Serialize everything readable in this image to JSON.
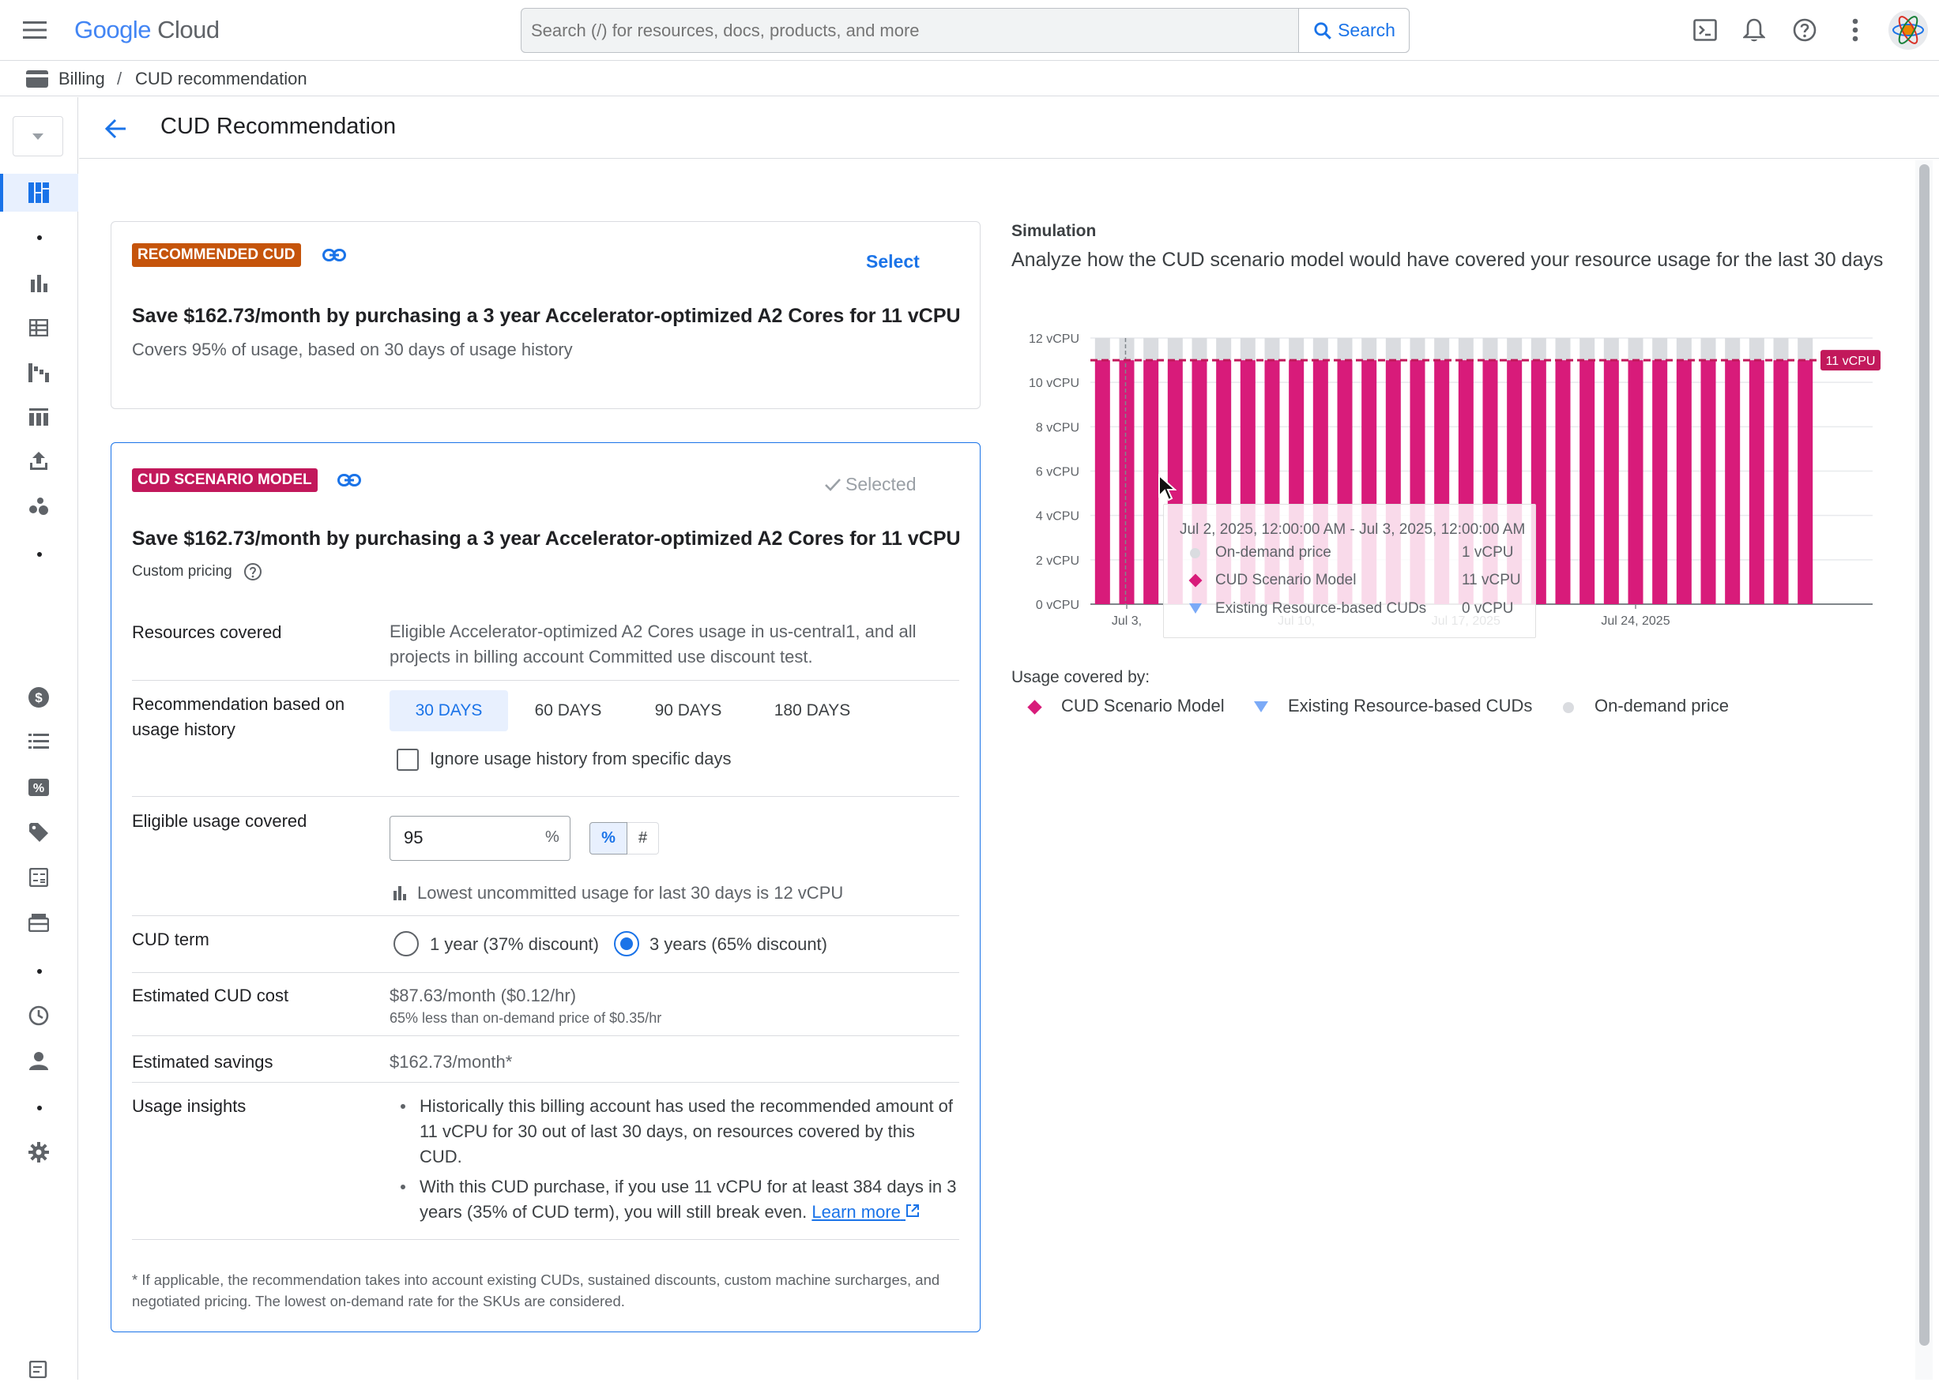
{
  "topbar": {
    "logo_google": "Google",
    "logo_cloud": "Cloud",
    "search_placeholder": "Search (/) for resources, docs, products, and more",
    "search_button": "Search"
  },
  "breadcrumb": {
    "items": [
      "Billing",
      "CUD recommendation"
    ],
    "separator": "/"
  },
  "page": {
    "title": "CUD Recommendation"
  },
  "recommended_card": {
    "badge": "RECOMMENDED CUD",
    "select_label": "Select",
    "headline": "Save $162.73/month by purchasing a 3 year Accelerator-optimized A2 Cores for 11 vCPU",
    "subtext": "Covers 95% of usage, based on 30 days of usage history"
  },
  "scenario_card": {
    "badge": "CUD SCENARIO MODEL",
    "selected_label": "Selected",
    "headline": "Save $162.73/month by purchasing a 3 year Accelerator-optimized A2 Cores for 11 vCPU",
    "custom_pricing": "Custom pricing",
    "resources_label": "Resources covered",
    "resources_value": "Eligible Accelerator-optimized A2 Cores usage in us-central1, and all projects in billing account Committed use discount test.",
    "history_label": "Recommendation based on usage history",
    "history_options": [
      "30 DAYS",
      "60 DAYS",
      "90 DAYS",
      "180 DAYS"
    ],
    "history_selected": "30 DAYS",
    "ignore_label": "Ignore usage history from specific days",
    "eligible_label": "Eligible usage covered",
    "eligible_value": "95",
    "eligible_unit": "%",
    "toggle_pct": "%",
    "toggle_num": "#",
    "lowest_note": "Lowest uncommitted usage for last 30 days is 12 vCPU",
    "term_label": "CUD term",
    "term_options": [
      "1 year (37% discount)",
      "3 years (65% discount)"
    ],
    "term_selected": "3 years (65% discount)",
    "cost_label": "Estimated CUD cost",
    "cost_value": "$87.63/month ($0.12/hr)",
    "cost_sub": "65% less than on-demand price of $0.35/hr",
    "savings_label": "Estimated savings",
    "savings_value": "$162.73/month*",
    "insights_label": "Usage insights",
    "insight_1": "Historically this billing account has used the recommended amount of 11 vCPU for 30 out of last 30 days, on resources covered by this CUD.",
    "insight_2": "With this CUD purchase, if you use 11 vCPU for at least 384 days in 3 years (35% of CUD term), you will still break even.",
    "learn_more": "Learn more",
    "footnote": "* If applicable, the recommendation takes into account existing CUDs, sustained discounts, custom machine surcharges, and negotiated pricing. The lowest on-demand rate for the SKUs are considered."
  },
  "simulation": {
    "label": "Simulation",
    "description": "Analyze how the CUD scenario model would have covered your resource usage for the last 30 days",
    "usage_covered_by": "Usage covered by:",
    "tooltip": {
      "title": "Jul 2, 2025, 12:00:00 AM - Jul 3, 2025, 12:00:00 AM",
      "rows": [
        {
          "name": "On-demand price",
          "value": "1 vCPU"
        },
        {
          "name": "CUD Scenario Model",
          "value": "11 vCPU"
        },
        {
          "name": "Existing Resource-based CUDs",
          "value": "0 vCPU"
        }
      ]
    }
  },
  "chart_data": {
    "type": "bar",
    "stacked": true,
    "y_ticks": [
      "0 vCPU",
      "2 vCPU",
      "4 vCPU",
      "6 vCPU",
      "8 vCPU",
      "10 vCPU",
      "12 vCPU"
    ],
    "ylim": [
      0,
      12
    ],
    "x_tick_labels": [
      "Jul 3,",
      "Jul 10,",
      "Jul 17, 2025",
      "Jul 24, 2025"
    ],
    "days": 30,
    "series": [
      {
        "name": "CUD Scenario Model",
        "color": "#d81b7a",
        "values": [
          11,
          11,
          11,
          11,
          11,
          11,
          11,
          11,
          11,
          11,
          11,
          11,
          11,
          11,
          11,
          11,
          11,
          11,
          11,
          11,
          11,
          11,
          11,
          11,
          11,
          11,
          11,
          11,
          11,
          11
        ]
      },
      {
        "name": "Existing Resource-based CUDs",
        "color": "#7baaf7",
        "values": [
          0,
          0,
          0,
          0,
          0,
          0,
          0,
          0,
          0,
          0,
          0,
          0,
          0,
          0,
          0,
          0,
          0,
          0,
          0,
          0,
          0,
          0,
          0,
          0,
          0,
          0,
          0,
          0,
          0,
          0
        ]
      },
      {
        "name": "On-demand price",
        "color": "#dadce0",
        "values": [
          1,
          1,
          1,
          1,
          1,
          1,
          1,
          1,
          1,
          1,
          1,
          1,
          1,
          1,
          1,
          1,
          1,
          1,
          1,
          1,
          1,
          1,
          1,
          1,
          1,
          1,
          1,
          1,
          1,
          1
        ]
      }
    ],
    "threshold": {
      "value": 11,
      "label": "11 vCPU",
      "color": "#c2185b"
    },
    "legend": [
      "CUD Scenario Model",
      "Existing Resource-based CUDs",
      "On-demand price"
    ]
  }
}
